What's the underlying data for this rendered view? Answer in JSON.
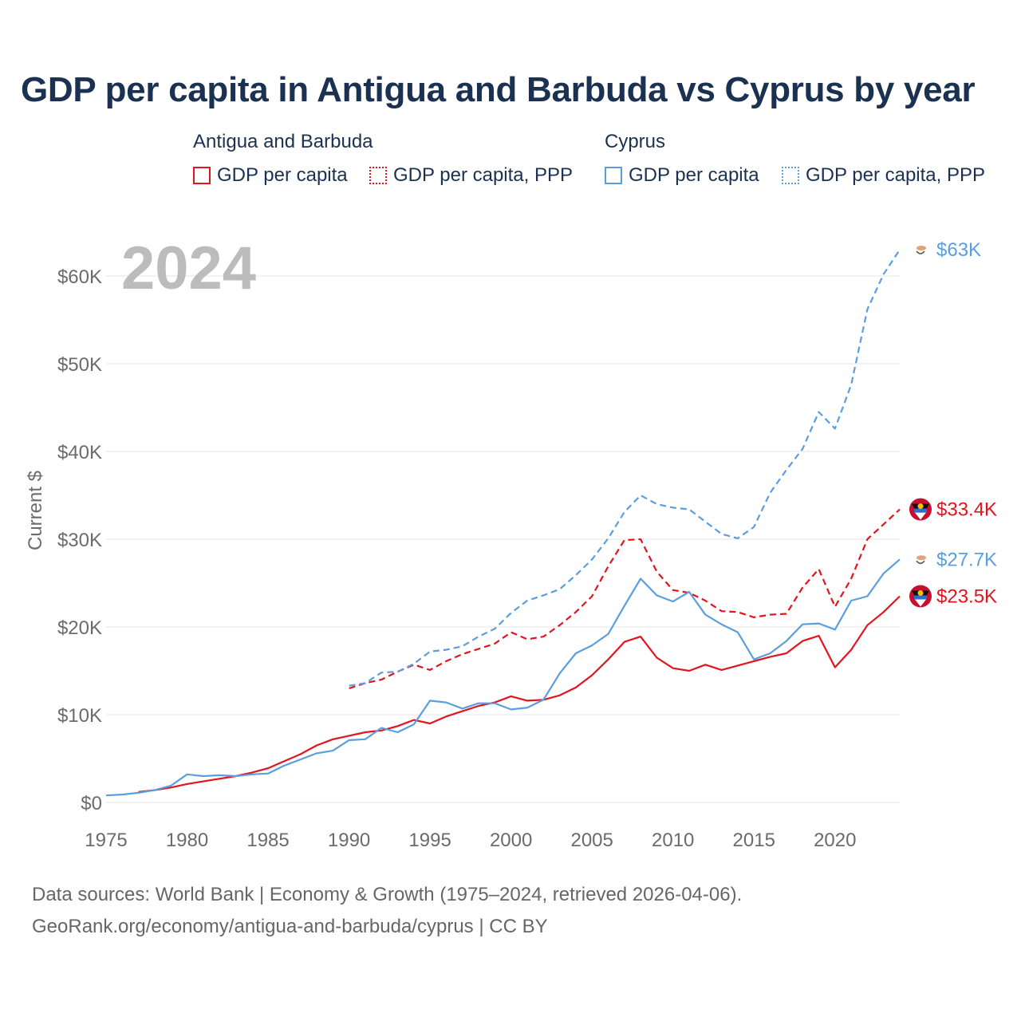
{
  "title": "GDP per capita in Antigua and Barbuda vs Cyprus by year",
  "legend": {
    "group1": "Antigua and Barbuda",
    "group2": "Cyprus",
    "item_gdp": "GDP per capita",
    "item_ppp": "GDP per capita, PPP"
  },
  "source": {
    "line1": "Data sources: World Bank | Economy & Growth (1975–2024, retrieved 2026-04-06).",
    "line2": "GeoRank.org/economy/antigua-and-barbuda/cyprus | CC BY"
  },
  "colors": {
    "antigua": "#e3141e",
    "cyprus": "#5b9ee0",
    "grid": "#e6e6e6",
    "axis_text": "#6b6b6b",
    "year_watermark": "#bcbcbc"
  },
  "chart_data": {
    "type": "line",
    "year_label": "2024",
    "ylabel": "Current $",
    "xlim": [
      1975,
      2024
    ],
    "ylim": [
      0,
      63000
    ],
    "xticks": [
      1975,
      1980,
      1985,
      1990,
      1995,
      2000,
      2005,
      2010,
      2015,
      2020
    ],
    "yticks": [
      0,
      10000,
      20000,
      30000,
      40000,
      50000,
      60000
    ],
    "ytick_labels": [
      "$0",
      "$10K",
      "$20K",
      "$30K",
      "$40K",
      "$50K",
      "$60K"
    ],
    "series": [
      {
        "name": "Antigua and Barbuda — GDP per capita",
        "country": "antigua",
        "style": "solid",
        "end_label": "$23.5K",
        "flag": "antigua",
        "x": [
          1977,
          1978,
          1979,
          1980,
          1981,
          1982,
          1983,
          1984,
          1985,
          1986,
          1987,
          1988,
          1989,
          1990,
          1991,
          1992,
          1993,
          1994,
          1995,
          1996,
          1997,
          1998,
          1999,
          2000,
          2001,
          2002,
          2003,
          2004,
          2005,
          2006,
          2007,
          2008,
          2009,
          2010,
          2011,
          2012,
          2013,
          2014,
          2015,
          2016,
          2017,
          2018,
          2019,
          2020,
          2021,
          2022,
          2023,
          2024
        ],
        "values": [
          1200,
          1400,
          1700,
          2100,
          2400,
          2700,
          3000,
          3400,
          3900,
          4700,
          5500,
          6500,
          7200,
          7600,
          8000,
          8200,
          8700,
          9400,
          9000,
          9800,
          10400,
          11000,
          11400,
          12100,
          11600,
          11700,
          12200,
          13100,
          14500,
          16300,
          18300,
          18900,
          16500,
          15300,
          15000,
          15700,
          15100,
          15600,
          16100,
          16600,
          17000,
          18400,
          19000,
          15400,
          17400,
          20200,
          21700,
          23500
        ]
      },
      {
        "name": "Antigua and Barbuda — GDP per capita, PPP",
        "country": "antigua",
        "style": "dashed",
        "end_label": "$33.4K",
        "flag": "antigua",
        "x": [
          1990,
          1991,
          1992,
          1993,
          1994,
          1995,
          1996,
          1997,
          1998,
          1999,
          2000,
          2001,
          2002,
          2003,
          2004,
          2005,
          2006,
          2007,
          2008,
          2009,
          2010,
          2011,
          2012,
          2013,
          2014,
          2015,
          2016,
          2017,
          2018,
          2019,
          2020,
          2021,
          2022,
          2023,
          2024
        ],
        "values": [
          13000,
          13600,
          14000,
          14900,
          15700,
          15100,
          16100,
          16900,
          17500,
          18100,
          19400,
          18600,
          18900,
          20200,
          21700,
          23500,
          26900,
          29900,
          30000,
          26300,
          24200,
          23900,
          23000,
          21800,
          21700,
          21100,
          21400,
          21500,
          24500,
          26600,
          22300,
          25500,
          30000,
          31700,
          33400
        ]
      },
      {
        "name": "Cyprus — GDP per capita",
        "country": "cyprus",
        "style": "solid",
        "end_label": "$27.7K",
        "flag": "cyprus",
        "x": [
          1975,
          1976,
          1977,
          1978,
          1979,
          1980,
          1981,
          1982,
          1983,
          1984,
          1985,
          1986,
          1987,
          1988,
          1989,
          1990,
          1991,
          1992,
          1993,
          1994,
          1995,
          1996,
          1997,
          1998,
          1999,
          2000,
          2001,
          2002,
          2003,
          2004,
          2005,
          2006,
          2007,
          2008,
          2009,
          2010,
          2011,
          2012,
          2013,
          2014,
          2015,
          2016,
          2017,
          2018,
          2019,
          2020,
          2021,
          2022,
          2023,
          2024
        ],
        "values": [
          800,
          900,
          1100,
          1400,
          1900,
          3200,
          3000,
          3100,
          3000,
          3200,
          3300,
          4200,
          4900,
          5600,
          5900,
          7100,
          7200,
          8500,
          8000,
          8900,
          11600,
          11400,
          10700,
          11300,
          11300,
          10600,
          10800,
          11700,
          14700,
          17000,
          17900,
          19200,
          22400,
          25500,
          23600,
          22900,
          24000,
          21400,
          20300,
          19400,
          16300,
          17000,
          18400,
          20300,
          20400,
          19700,
          23000,
          23500,
          26100,
          27700
        ]
      },
      {
        "name": "Cyprus — GDP per capita, PPP",
        "country": "cyprus",
        "style": "dashed",
        "end_label": "$63K",
        "flag": "cyprus",
        "x": [
          1990,
          1991,
          1992,
          1993,
          1994,
          1995,
          1996,
          1997,
          1998,
          1999,
          2000,
          2001,
          2002,
          2003,
          2004,
          2005,
          2006,
          2007,
          2008,
          2009,
          2010,
          2011,
          2012,
          2013,
          2014,
          2015,
          2016,
          2017,
          2018,
          2019,
          2020,
          2021,
          2022,
          2023,
          2024
        ],
        "values": [
          13300,
          13600,
          14800,
          14900,
          15800,
          17200,
          17400,
          17800,
          18900,
          19800,
          21600,
          23000,
          23600,
          24300,
          25900,
          27700,
          30100,
          33100,
          35000,
          34000,
          33600,
          33400,
          32000,
          30600,
          30100,
          31400,
          35300,
          37900,
          40300,
          44500,
          42600,
          47600,
          56200,
          60200,
          63000
        ]
      }
    ]
  }
}
